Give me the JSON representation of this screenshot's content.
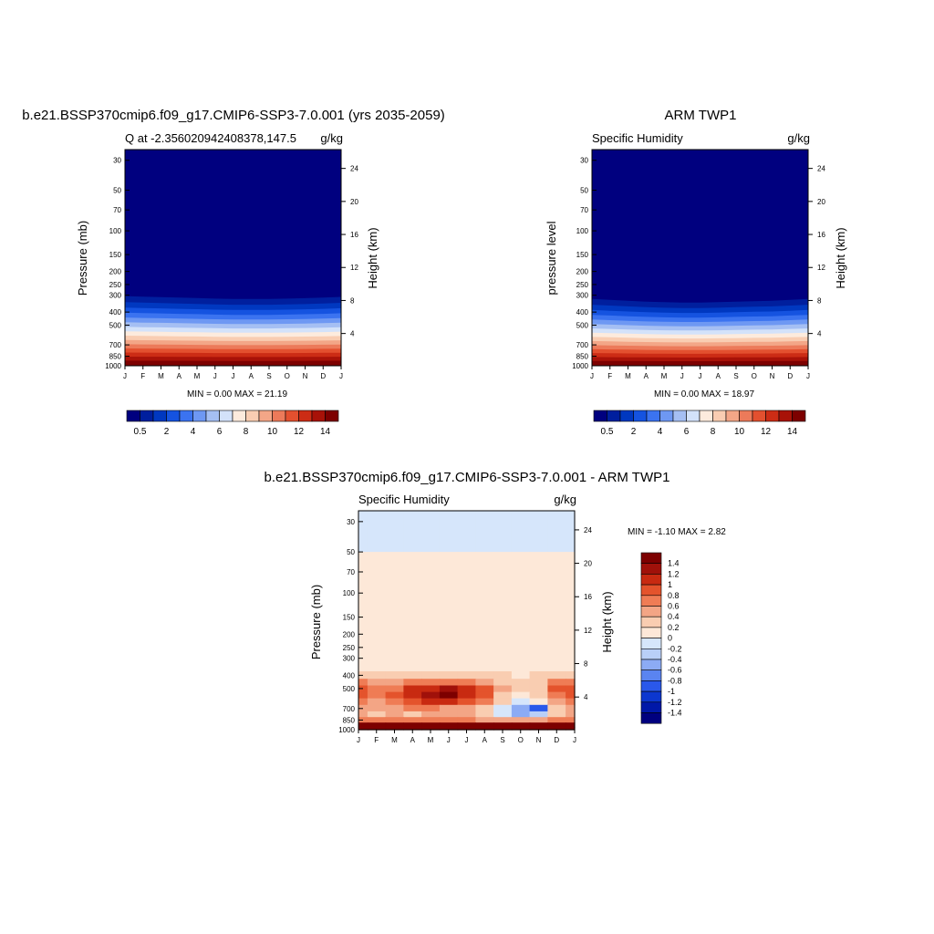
{
  "colors": {
    "levels_abs": [
      "#00007f",
      "#001f9e",
      "#0038c0",
      "#1553e0",
      "#3b73f0",
      "#6e98f3",
      "#a5bff3",
      "#d3e2fa",
      "#fdebdd",
      "#f9cdb2",
      "#f3a687",
      "#ec7a5a",
      "#e3502f",
      "#cc2c15",
      "#a81208",
      "#7d0000"
    ],
    "levels_diff": [
      "#00007f",
      "#0018a8",
      "#0c37cf",
      "#2a58ea",
      "#5a84f1",
      "#8cabf4",
      "#b9cff7",
      "#d6e6fb",
      "#fde8d8",
      "#f9cdb1",
      "#f3a585",
      "#ef7c55",
      "#e4532c",
      "#c82a11",
      "#a0110a",
      "#7d0000"
    ]
  },
  "panels": {
    "model": {
      "case_title": "b.e21.BSSP370cmip6.f09_g17.CMIP6-SSP3-7.0.001 (yrs 2035-2059)",
      "left_label": "Q at -2.356020942408378,147.5",
      "right_label": "g/kg",
      "ylabel": "Pressure (mb)",
      "ylabel_right": "Height (km)",
      "stats": "MIN =   0.00 MAX =  21.19",
      "cbar_ticks": [
        "0.5",
        "2",
        "4",
        "6",
        "8",
        "10",
        "12",
        "14"
      ]
    },
    "obs": {
      "case_title": "ARM TWP1",
      "left_label": "Specific Humidity",
      "right_label": "g/kg",
      "ylabel": "pressure level",
      "ylabel_right": "Height (km)",
      "stats": "MIN =   0.00 MAX =  18.97",
      "cbar_ticks": [
        "0.5",
        "2",
        "4",
        "6",
        "8",
        "10",
        "12",
        "14"
      ]
    },
    "diff": {
      "case_title": "b.e21.BSSP370cmip6.f09_g17.CMIP6-SSP3-7.0.001 - ARM TWP1",
      "left_label": "Specific Humidity",
      "right_label": "g/kg",
      "ylabel": "Pressure (mb)",
      "ylabel_right": "Height (km)",
      "stats": "MIN =  -1.10 MAX =   2.82",
      "cbar_ticks": [
        "1.4",
        "1.2",
        "1",
        "0.8",
        "0.6",
        "0.4",
        "0.2",
        "0",
        "-0.2",
        "-0.4",
        "-0.6",
        "-0.8",
        "-1",
        "-1.2",
        "-1.4"
      ]
    }
  },
  "chart_data": [
    {
      "type": "heatmap",
      "title": "b.e21.BSSP370cmip6.f09_g17.CMIP6-SSP3-7.0.001 (yrs 2035-2059)",
      "subtitle": "Q at -2.356020942408378,147.5",
      "units": "g/kg",
      "xlabel": "",
      "ylabel": "Pressure (mb)",
      "ylabel_right": "Height (km)",
      "x_ticks": [
        "J",
        "F",
        "M",
        "A",
        "M",
        "J",
        "J",
        "A",
        "S",
        "O",
        "N",
        "D",
        "J"
      ],
      "y_ticks": [
        30,
        50,
        70,
        100,
        150,
        200,
        250,
        300,
        400,
        500,
        700,
        850,
        1000
      ],
      "y_right_ticks": [
        4,
        8,
        12,
        16,
        20,
        24
      ],
      "y_scale": "log",
      "ylim": [
        1000,
        25
      ],
      "min": 0.0,
      "max": 21.19,
      "x": [
        0,
        1,
        2,
        3,
        4,
        5,
        6,
        7,
        8,
        9,
        10,
        11,
        12
      ],
      "moisture_top_mb": [
        285,
        288,
        290,
        293,
        295,
        298,
        300,
        300,
        300,
        298,
        296,
        293,
        289
      ]
    },
    {
      "type": "heatmap",
      "title": "ARM TWP1",
      "subtitle": "Specific Humidity",
      "units": "g/kg",
      "xlabel": "",
      "ylabel": "pressure level",
      "ylabel_right": "Height (km)",
      "x_ticks": [
        "J",
        "F",
        "M",
        "A",
        "M",
        "J",
        "J",
        "A",
        "S",
        "O",
        "N",
        "D",
        "J"
      ],
      "y_ticks": [
        30,
        50,
        70,
        100,
        150,
        200,
        250,
        300,
        400,
        500,
        700,
        850,
        1000
      ],
      "y_right_ticks": [
        4,
        8,
        12,
        16,
        20,
        24
      ],
      "y_scale": "log",
      "ylim": [
        1000,
        25
      ],
      "min": 0.0,
      "max": 18.97,
      "x": [
        0,
        1,
        2,
        3,
        4,
        5,
        6,
        7,
        8,
        9,
        10,
        11,
        12
      ],
      "moisture_top_mb": [
        300,
        305,
        310,
        315,
        318,
        320,
        320,
        318,
        315,
        312,
        310,
        305,
        300
      ]
    },
    {
      "type": "heatmap",
      "title": "b.e21.BSSP370cmip6.f09_g17.CMIP6-SSP3-7.0.001 - ARM TWP1",
      "subtitle": "Specific Humidity",
      "units": "g/kg",
      "xlabel": "",
      "ylabel": "Pressure (mb)",
      "ylabel_right": "Height (km)",
      "x_ticks": [
        "J",
        "F",
        "M",
        "A",
        "M",
        "J",
        "J",
        "A",
        "S",
        "O",
        "N",
        "D",
        "J"
      ],
      "y_ticks": [
        30,
        50,
        70,
        100,
        150,
        200,
        250,
        300,
        400,
        500,
        700,
        850,
        1000
      ],
      "y_right_ticks": [
        4,
        8,
        12,
        16,
        20,
        24
      ],
      "y_scale": "log",
      "ylim": [
        1000,
        25
      ],
      "min": -1.1,
      "max": 2.82,
      "contour_levels": [
        -1.4,
        -1.2,
        -1,
        -0.8,
        -0.6,
        -0.4,
        -0.2,
        0,
        0.2,
        0.4,
        0.6,
        0.8,
        1,
        1.2,
        1.4
      ],
      "x": [
        0,
        1,
        2,
        3,
        4,
        5,
        6,
        7,
        8,
        9,
        10,
        11,
        12
      ],
      "p_levels": [
        25,
        100,
        350,
        400,
        450,
        500,
        560,
        620,
        700,
        770,
        850,
        925,
        1000
      ],
      "values": [
        [
          -0.05,
          -0.05,
          -0.05,
          -0.05,
          -0.05,
          -0.05,
          -0.05,
          -0.05,
          -0.05,
          -0.05,
          -0.05,
          -0.05,
          -0.05
        ],
        [
          0.05,
          0.05,
          0.05,
          0.05,
          0.05,
          0.05,
          0.05,
          0.05,
          0.05,
          0.05,
          0.05,
          0.05,
          0.05
        ],
        [
          0.1,
          0.15,
          0.1,
          0.12,
          0.1,
          0.1,
          0.12,
          0.1,
          0.08,
          0.1,
          0.1,
          0.15,
          0.1
        ],
        [
          0.35,
          0.3,
          0.25,
          0.3,
          0.35,
          0.3,
          0.3,
          0.25,
          0.2,
          0.15,
          0.2,
          0.3,
          0.35
        ],
        [
          0.6,
          0.45,
          0.5,
          0.7,
          0.7,
          0.75,
          0.6,
          0.5,
          0.3,
          0.2,
          0.3,
          0.7,
          0.6
        ],
        [
          0.8,
          0.6,
          0.7,
          1.05,
          1.15,
          1.2,
          1.0,
          0.8,
          0.4,
          0.2,
          0.3,
          0.85,
          0.8
        ],
        [
          0.9,
          0.6,
          0.8,
          1.1,
          1.25,
          1.45,
          1.15,
          0.85,
          0.35,
          0.1,
          0.2,
          0.7,
          0.9
        ],
        [
          0.75,
          0.55,
          0.7,
          0.9,
          1.0,
          1.15,
          0.95,
          0.7,
          0.2,
          -0.1,
          0.0,
          0.5,
          0.75
        ],
        [
          0.55,
          0.5,
          0.5,
          0.6,
          0.6,
          0.55,
          0.5,
          0.35,
          -0.2,
          -0.5,
          -0.9,
          0.3,
          0.55
        ],
        [
          0.45,
          0.35,
          0.4,
          0.35,
          0.45,
          0.5,
          0.45,
          0.3,
          -0.1,
          -0.5,
          -0.4,
          0.3,
          0.45
        ],
        [
          0.7,
          0.6,
          0.65,
          0.6,
          0.65,
          0.7,
          0.6,
          0.55,
          0.55,
          0.5,
          0.5,
          0.6,
          0.7
        ],
        [
          1.5,
          1.45,
          1.5,
          1.5,
          1.5,
          1.55,
          1.5,
          1.45,
          1.4,
          1.4,
          1.4,
          1.45,
          1.5
        ],
        [
          2.5,
          2.4,
          2.5,
          2.5,
          2.6,
          2.7,
          2.6,
          2.5,
          2.4,
          2.4,
          2.3,
          2.4,
          2.5
        ]
      ]
    }
  ]
}
